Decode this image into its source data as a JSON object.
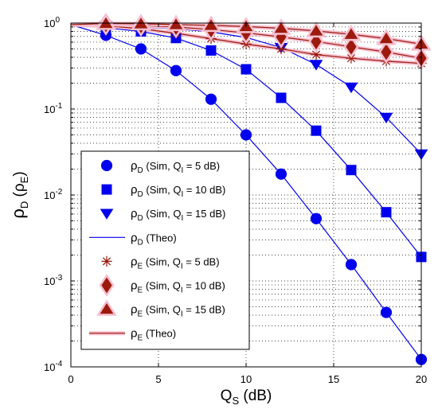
{
  "chart_data": {
    "type": "line",
    "title": "",
    "xlabel": "Q_S (dB)",
    "ylabel": "ρ_D (ρ_E)",
    "xlim": [
      0,
      20
    ],
    "ylim": [
      0.0001,
      1
    ],
    "yscale": "log",
    "grid": "dotted (major + minor)",
    "legend_position": "lower-left",
    "x_ticks": [
      "0",
      "5",
      "10",
      "15",
      "20"
    ],
    "y_ticks": [
      {
        "base": "10",
        "exp": "0",
        "value": 1
      },
      {
        "base": "10",
        "exp": "-1",
        "value": 0.1
      },
      {
        "base": "10",
        "exp": "-2",
        "value": 0.01
      },
      {
        "base": "10",
        "exp": "-3",
        "value": 0.001
      },
      {
        "base": "10",
        "exp": "-4",
        "value": 0.0001
      }
    ],
    "colors": {
      "blue": "#0000ee",
      "red": "#9c1a0c",
      "red_halo": "#f6bfd0"
    },
    "series": [
      {
        "sym": "ρ",
        "sub": "D",
        "rest": " (Sim, Q",
        "sub2": "I",
        "rest2": " = 5 dB)",
        "marker": "circle",
        "color": "#0000ee",
        "x": [
          2,
          4,
          6,
          8,
          10,
          12,
          14,
          16,
          18,
          20
        ],
        "y": [
          0.72,
          0.5,
          0.28,
          0.13,
          0.05,
          0.0175,
          0.0053,
          0.00155,
          0.00043,
          0.000122
        ]
      },
      {
        "sym": "ρ",
        "sub": "D",
        "rest": " (Sim, Q",
        "sub2": "I",
        "rest2": " = 10 dB)",
        "marker": "square",
        "color": "#0000ee",
        "x": [
          2,
          4,
          6,
          8,
          10,
          12,
          14,
          16,
          18,
          20
        ],
        "y": [
          0.88,
          0.8,
          0.67,
          0.48,
          0.29,
          0.135,
          0.056,
          0.0195,
          0.0063,
          0.0019
        ]
      },
      {
        "sym": "ρ",
        "sub": "D",
        "rest": " (Sim, Q",
        "sub2": "I",
        "rest2": " = 15 dB)",
        "marker": "triangle-down",
        "color": "#0000ee",
        "x": [
          2,
          4,
          6,
          8,
          10,
          12,
          14,
          16,
          18,
          20
        ],
        "y": [
          0.93,
          0.9,
          0.86,
          0.79,
          0.68,
          0.52,
          0.33,
          0.18,
          0.08,
          0.03
        ]
      },
      {
        "sym": "ρ",
        "sub": "D",
        "rest": " (Theo)",
        "sub2": "",
        "rest2": "",
        "marker": "line",
        "color": "#0000ee"
      },
      {
        "sym": "ρ",
        "sub": "E",
        "rest": " (Sim, Q",
        "sub2": "I",
        "rest2": " = 5 dB)",
        "marker": "asterisk",
        "color": "#9c1a0c",
        "x": [
          2,
          4,
          6,
          8,
          10,
          12,
          14,
          16,
          18,
          20
        ],
        "y": [
          0.93,
          0.86,
          0.76,
          0.66,
          0.57,
          0.5,
          0.43,
          0.39,
          0.36,
          0.34
        ]
      },
      {
        "sym": "ρ",
        "sub": "E",
        "rest": " (Sim, Q",
        "sub2": "I",
        "rest2": " = 10 dB)",
        "marker": "diamond",
        "color": "#9c1a0c",
        "x": [
          2,
          4,
          6,
          8,
          10,
          12,
          14,
          16,
          18,
          20
        ],
        "y": [
          0.97,
          0.94,
          0.9,
          0.84,
          0.77,
          0.69,
          0.61,
          0.53,
          0.46,
          0.39
        ]
      },
      {
        "sym": "ρ",
        "sub": "E",
        "rest": " (Sim, Q",
        "sub2": "I",
        "rest2": " = 15 dB)",
        "marker": "triangle-up",
        "color": "#9c1a0c",
        "x": [
          2,
          4,
          6,
          8,
          10,
          12,
          14,
          16,
          18,
          20
        ],
        "y": [
          0.99,
          0.98,
          0.96,
          0.94,
          0.91,
          0.87,
          0.81,
          0.74,
          0.66,
          0.57
        ]
      },
      {
        "sym": "ρ",
        "sub": "E",
        "rest": " (Theo)",
        "sub2": "",
        "rest2": "",
        "marker": "line",
        "color": "#9c1a0c"
      }
    ]
  }
}
